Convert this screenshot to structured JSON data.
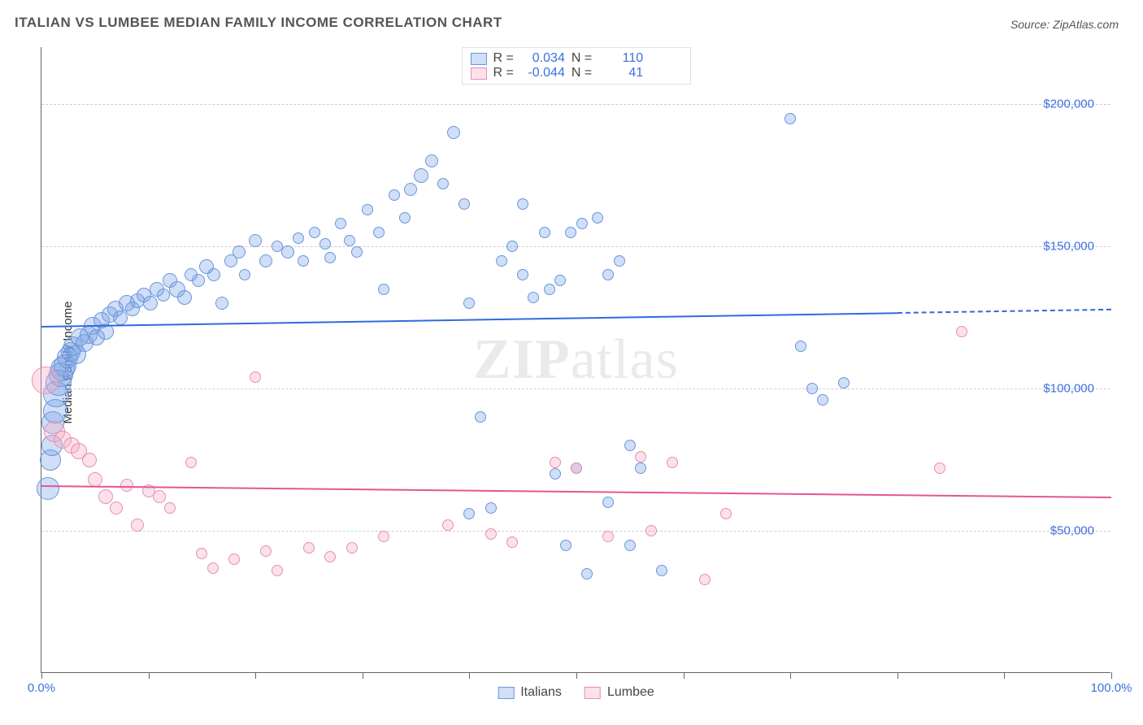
{
  "title": "ITALIAN VS LUMBEE MEDIAN FAMILY INCOME CORRELATION CHART",
  "source": "Source: ZipAtlas.com",
  "watermark": "ZIPatlas",
  "ylabel": "Median Family Income",
  "chart": {
    "type": "scatter",
    "xlim": [
      0,
      100
    ],
    "ylim": [
      0,
      220000
    ],
    "xticks": [
      0,
      10,
      20,
      30,
      40,
      50,
      60,
      70,
      80,
      90,
      100
    ],
    "xtick_labels": {
      "0": "0.0%",
      "100": "100.0%"
    },
    "yticks": [
      50000,
      100000,
      150000,
      200000
    ],
    "ytick_labels": [
      "$50,000",
      "$100,000",
      "$150,000",
      "$200,000"
    ],
    "grid_color": "#cccccc",
    "axis_color": "#666666",
    "tick_label_color": "#3b6fe0",
    "background_color": "#ffffff"
  },
  "series": [
    {
      "id": "italians",
      "label": "Italians",
      "fill": "rgba(120,160,230,0.35)",
      "stroke": "#6a96de",
      "regression": {
        "y_start": 122000,
        "y_end": 128000,
        "solid_until_x": 80,
        "color": "#2f6ae0",
        "width": 2
      },
      "stats": {
        "R": "0.034",
        "N": "110"
      },
      "points": [
        {
          "x": 0.6,
          "y": 65000,
          "r": 14
        },
        {
          "x": 0.8,
          "y": 75000,
          "r": 13
        },
        {
          "x": 1,
          "y": 80000,
          "r": 13
        },
        {
          "x": 1.1,
          "y": 88000,
          "r": 14
        },
        {
          "x": 1.3,
          "y": 92000,
          "r": 15
        },
        {
          "x": 1.4,
          "y": 98000,
          "r": 16
        },
        {
          "x": 1.6,
          "y": 102000,
          "r": 16
        },
        {
          "x": 1.8,
          "y": 105000,
          "r": 15
        },
        {
          "x": 2,
          "y": 107000,
          "r": 15
        },
        {
          "x": 2.2,
          "y": 108000,
          "r": 14
        },
        {
          "x": 2.4,
          "y": 111000,
          "r": 13
        },
        {
          "x": 2.7,
          "y": 113000,
          "r": 12
        },
        {
          "x": 3,
          "y": 115000,
          "r": 12
        },
        {
          "x": 3.3,
          "y": 112000,
          "r": 12
        },
        {
          "x": 3.6,
          "y": 118000,
          "r": 11
        },
        {
          "x": 4,
          "y": 116000,
          "r": 11
        },
        {
          "x": 4.4,
          "y": 119000,
          "r": 11
        },
        {
          "x": 4.8,
          "y": 122000,
          "r": 11
        },
        {
          "x": 5.2,
          "y": 118000,
          "r": 10
        },
        {
          "x": 5.6,
          "y": 124000,
          "r": 10
        },
        {
          "x": 6,
          "y": 120000,
          "r": 10
        },
        {
          "x": 6.4,
          "y": 126000,
          "r": 10
        },
        {
          "x": 6.9,
          "y": 128000,
          "r": 10
        },
        {
          "x": 7.4,
          "y": 125000,
          "r": 9
        },
        {
          "x": 8,
          "y": 130000,
          "r": 10
        },
        {
          "x": 8.5,
          "y": 128000,
          "r": 9
        },
        {
          "x": 9,
          "y": 131000,
          "r": 9
        },
        {
          "x": 9.6,
          "y": 133000,
          "r": 9
        },
        {
          "x": 10.2,
          "y": 130000,
          "r": 9
        },
        {
          "x": 10.8,
          "y": 135000,
          "r": 9
        },
        {
          "x": 11.4,
          "y": 133000,
          "r": 8
        },
        {
          "x": 12,
          "y": 138000,
          "r": 9
        },
        {
          "x": 12.7,
          "y": 135000,
          "r": 10
        },
        {
          "x": 13.4,
          "y": 132000,
          "r": 9
        },
        {
          "x": 14,
          "y": 140000,
          "r": 8
        },
        {
          "x": 14.7,
          "y": 138000,
          "r": 8
        },
        {
          "x": 15.4,
          "y": 143000,
          "r": 9
        },
        {
          "x": 16.1,
          "y": 140000,
          "r": 8
        },
        {
          "x": 16.9,
          "y": 130000,
          "r": 8
        },
        {
          "x": 17.7,
          "y": 145000,
          "r": 8
        },
        {
          "x": 18.5,
          "y": 148000,
          "r": 8
        },
        {
          "x": 19,
          "y": 140000,
          "r": 7
        },
        {
          "x": 20,
          "y": 152000,
          "r": 8
        },
        {
          "x": 21,
          "y": 145000,
          "r": 8
        },
        {
          "x": 22,
          "y": 150000,
          "r": 7
        },
        {
          "x": 23,
          "y": 148000,
          "r": 8
        },
        {
          "x": 24,
          "y": 153000,
          "r": 7
        },
        {
          "x": 24.5,
          "y": 145000,
          "r": 7
        },
        {
          "x": 25.5,
          "y": 155000,
          "r": 7
        },
        {
          "x": 26.5,
          "y": 151000,
          "r": 7
        },
        {
          "x": 27,
          "y": 146000,
          "r": 7
        },
        {
          "x": 28,
          "y": 158000,
          "r": 7
        },
        {
          "x": 28.8,
          "y": 152000,
          "r": 7
        },
        {
          "x": 29.5,
          "y": 148000,
          "r": 7
        },
        {
          "x": 30.5,
          "y": 163000,
          "r": 7
        },
        {
          "x": 31.5,
          "y": 155000,
          "r": 7
        },
        {
          "x": 32,
          "y": 135000,
          "r": 7
        },
        {
          "x": 33,
          "y": 168000,
          "r": 7
        },
        {
          "x": 34,
          "y": 160000,
          "r": 7
        },
        {
          "x": 34.5,
          "y": 170000,
          "r": 8
        },
        {
          "x": 35.5,
          "y": 175000,
          "r": 9
        },
        {
          "x": 36.5,
          "y": 180000,
          "r": 8
        },
        {
          "x": 37.5,
          "y": 172000,
          "r": 7
        },
        {
          "x": 38.5,
          "y": 190000,
          "r": 8
        },
        {
          "x": 39.5,
          "y": 165000,
          "r": 7
        },
        {
          "x": 40,
          "y": 130000,
          "r": 7
        },
        {
          "x": 41,
          "y": 90000,
          "r": 7
        },
        {
          "x": 40,
          "y": 56000,
          "r": 7
        },
        {
          "x": 42,
          "y": 58000,
          "r": 7
        },
        {
          "x": 43,
          "y": 145000,
          "r": 7
        },
        {
          "x": 44,
          "y": 150000,
          "r": 7
        },
        {
          "x": 45,
          "y": 140000,
          "r": 7
        },
        {
          "x": 45,
          "y": 165000,
          "r": 7
        },
        {
          "x": 46,
          "y": 132000,
          "r": 7
        },
        {
          "x": 47,
          "y": 155000,
          "r": 7
        },
        {
          "x": 47.5,
          "y": 135000,
          "r": 7
        },
        {
          "x": 48.5,
          "y": 138000,
          "r": 7
        },
        {
          "x": 48,
          "y": 70000,
          "r": 7
        },
        {
          "x": 49.5,
          "y": 155000,
          "r": 7
        },
        {
          "x": 49,
          "y": 45000,
          "r": 7
        },
        {
          "x": 50.5,
          "y": 158000,
          "r": 7
        },
        {
          "x": 50,
          "y": 72000,
          "r": 7
        },
        {
          "x": 51,
          "y": 35000,
          "r": 7
        },
        {
          "x": 52,
          "y": 160000,
          "r": 7
        },
        {
          "x": 53,
          "y": 140000,
          "r": 7
        },
        {
          "x": 53,
          "y": 60000,
          "r": 7
        },
        {
          "x": 54,
          "y": 145000,
          "r": 7
        },
        {
          "x": 55,
          "y": 80000,
          "r": 7
        },
        {
          "x": 55,
          "y": 45000,
          "r": 7
        },
        {
          "x": 56,
          "y": 72000,
          "r": 7
        },
        {
          "x": 58,
          "y": 36000,
          "r": 7
        },
        {
          "x": 71,
          "y": 115000,
          "r": 7
        },
        {
          "x": 72,
          "y": 100000,
          "r": 7
        },
        {
          "x": 70,
          "y": 195000,
          "r": 7
        },
        {
          "x": 73,
          "y": 96000,
          "r": 7
        },
        {
          "x": 75,
          "y": 102000,
          "r": 7
        }
      ]
    },
    {
      "id": "lumbee",
      "label": "Lumbee",
      "fill": "rgba(245,170,195,0.35)",
      "stroke": "#e78fb0",
      "regression": {
        "y_start": 66000,
        "y_end": 62000,
        "solid_until_x": 100,
        "color": "#e55596",
        "width": 2
      },
      "stats": {
        "R": "-0.044",
        "N": "41"
      },
      "points": [
        {
          "x": 0.4,
          "y": 103000,
          "r": 17
        },
        {
          "x": 1.2,
          "y": 85000,
          "r": 13
        },
        {
          "x": 2,
          "y": 82000,
          "r": 11
        },
        {
          "x": 2.8,
          "y": 80000,
          "r": 10
        },
        {
          "x": 3.5,
          "y": 78000,
          "r": 10
        },
        {
          "x": 4.5,
          "y": 75000,
          "r": 9
        },
        {
          "x": 5,
          "y": 68000,
          "r": 9
        },
        {
          "x": 6,
          "y": 62000,
          "r": 9
        },
        {
          "x": 7,
          "y": 58000,
          "r": 8
        },
        {
          "x": 8,
          "y": 66000,
          "r": 8
        },
        {
          "x": 9,
          "y": 52000,
          "r": 8
        },
        {
          "x": 10,
          "y": 64000,
          "r": 8
        },
        {
          "x": 11,
          "y": 62000,
          "r": 8
        },
        {
          "x": 12,
          "y": 58000,
          "r": 7
        },
        {
          "x": 14,
          "y": 74000,
          "r": 7
        },
        {
          "x": 15,
          "y": 42000,
          "r": 7
        },
        {
          "x": 16,
          "y": 37000,
          "r": 7
        },
        {
          "x": 18,
          "y": 40000,
          "r": 7
        },
        {
          "x": 20,
          "y": 104000,
          "r": 7
        },
        {
          "x": 21,
          "y": 43000,
          "r": 7
        },
        {
          "x": 22,
          "y": 36000,
          "r": 7
        },
        {
          "x": 25,
          "y": 44000,
          "r": 7
        },
        {
          "x": 27,
          "y": 41000,
          "r": 7
        },
        {
          "x": 29,
          "y": 44000,
          "r": 7
        },
        {
          "x": 32,
          "y": 48000,
          "r": 7
        },
        {
          "x": 38,
          "y": 52000,
          "r": 7
        },
        {
          "x": 42,
          "y": 49000,
          "r": 7
        },
        {
          "x": 44,
          "y": 46000,
          "r": 7
        },
        {
          "x": 48,
          "y": 74000,
          "r": 7
        },
        {
          "x": 50,
          "y": 72000,
          "r": 7
        },
        {
          "x": 53,
          "y": 48000,
          "r": 7
        },
        {
          "x": 56,
          "y": 76000,
          "r": 7
        },
        {
          "x": 57,
          "y": 50000,
          "r": 7
        },
        {
          "x": 59,
          "y": 74000,
          "r": 7
        },
        {
          "x": 62,
          "y": 33000,
          "r": 7
        },
        {
          "x": 64,
          "y": 56000,
          "r": 7
        },
        {
          "x": 84,
          "y": 72000,
          "r": 7
        },
        {
          "x": 86,
          "y": 120000,
          "r": 7
        }
      ]
    }
  ],
  "legend_top": {
    "R_label": "R =",
    "N_label": "N ="
  },
  "legend_bottom": {}
}
